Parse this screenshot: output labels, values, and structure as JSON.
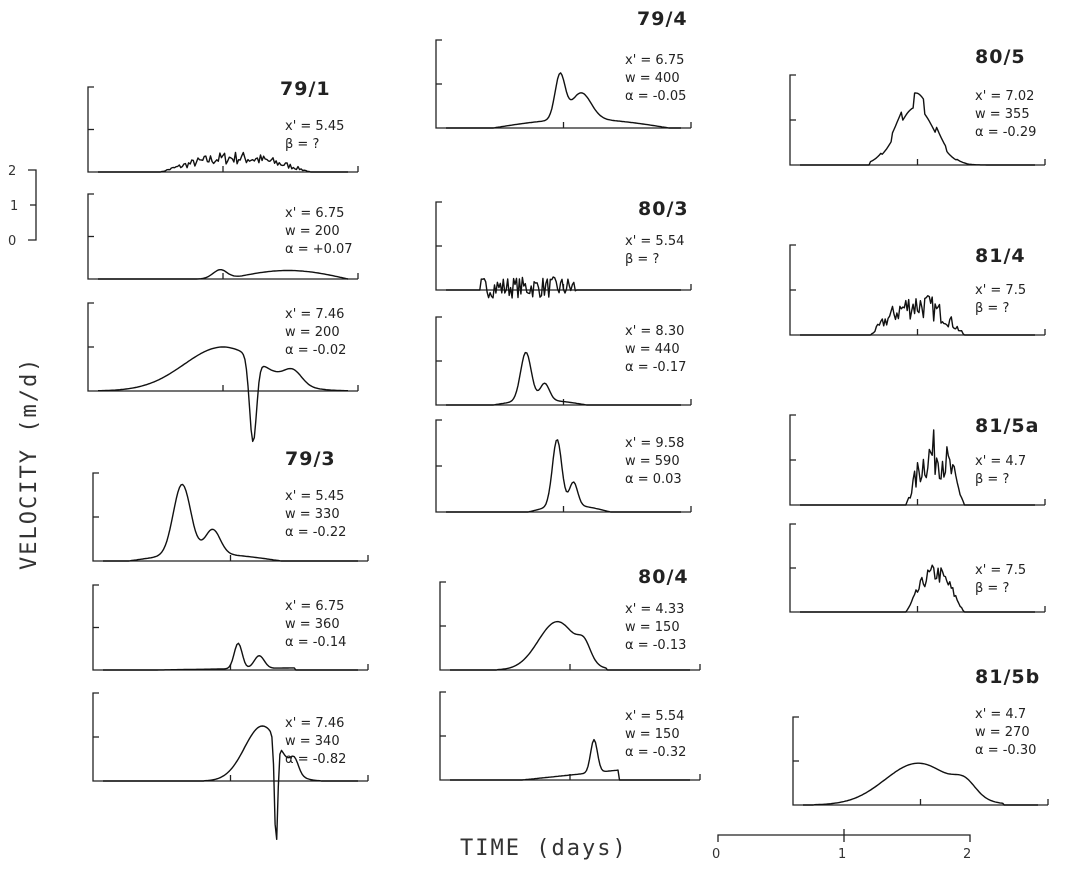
{
  "chart_data": {
    "type": "line",
    "y_axis_title": "VELOCITY  (m/d)",
    "x_axis_title": "TIME (days)",
    "y_scale_ticks": [
      "2",
      "1",
      "0"
    ],
    "time_scale_ticks": [
      "0",
      "1",
      "2"
    ],
    "panels": [
      {
        "group": "79/1",
        "x_prime": "x' = 5.45",
        "line2": "β = ?",
        "line3": "",
        "shape": "noisy",
        "peak": 0.35,
        "start": 0.25,
        "end": 0.85
      },
      {
        "group": "",
        "x_prime": "x' = 6.75",
        "line2": "w = 200",
        "line3": "α = +0.07",
        "shape": "double",
        "peak": 0.22,
        "start": 0.4,
        "end": 1.0
      },
      {
        "group": "",
        "x_prime": "x' = 7.46",
        "line2": "w = 200",
        "line3": "α = -0.02",
        "shape": "dip",
        "peak": 1.0,
        "start": 0.0,
        "end": 1.0
      },
      {
        "group": "79/3",
        "x_prime": "x' = 5.45",
        "line2": "w = 330",
        "line3": "α = -0.22",
        "shape": "spike",
        "peak": 1.6,
        "start": 0.1,
        "end": 0.7
      },
      {
        "group": "",
        "x_prime": "x' = 6.75",
        "line2": "w = 360",
        "line3": "α = -0.14",
        "shape": "small-double",
        "peak": 0.6,
        "start": 0.2,
        "end": 0.75
      },
      {
        "group": "",
        "x_prime": "x' = 7.46",
        "line2": "w = 340",
        "line3": "α = -0.82",
        "shape": "dip",
        "peak": 1.25,
        "start": 0.4,
        "end": 0.85
      },
      {
        "group": "79/4",
        "x_prime": "x' = 6.75",
        "line2": "w = 400",
        "line3": "α = -0.05",
        "shape": "double-peak",
        "peak": 1.0,
        "start": 0.2,
        "end": 0.95
      },
      {
        "group": "80/3",
        "x_prime": "x' = 5.54",
        "line2": "β = ?",
        "line3": "",
        "shape": "noisy-flat",
        "peak": 0.3,
        "start": 0.15,
        "end": 0.55
      },
      {
        "group": "",
        "x_prime": "x' = 8.30",
        "line2": "w = 440",
        "line3": "α = -0.17",
        "shape": "spike",
        "peak": 1.1,
        "start": 0.2,
        "end": 0.6
      },
      {
        "group": "",
        "x_prime": "x' = 9.58",
        "line2": "w = 590",
        "line3": "α = 0.03",
        "shape": "spike",
        "peak": 1.45,
        "start": 0.35,
        "end": 0.7
      },
      {
        "group": "80/4",
        "x_prime": "x' = 4.33",
        "line2": "w = 150",
        "line3": "α = -0.13",
        "shape": "hump",
        "peak": 1.1,
        "start": 0.2,
        "end": 0.65
      },
      {
        "group": "",
        "x_prime": "x' = 5.54",
        "line2": "w = 150",
        "line3": "α = -0.32",
        "shape": "late-spike",
        "peak": 0.75,
        "start": 0.3,
        "end": 0.7
      },
      {
        "group": "80/5",
        "x_prime": "x' = 7.02",
        "line2": "w = 355",
        "line3": "α = -0.29",
        "shape": "histogram",
        "peak": 1.6,
        "start": 0.3,
        "end": 0.85
      },
      {
        "group": "81/4",
        "x_prime": "x' = 7.5",
        "line2": "β = ?",
        "line3": "",
        "shape": "noisy",
        "peak": 0.7,
        "start": 0.3,
        "end": 0.7
      },
      {
        "group": "81/5a",
        "x_prime": "x' = 4.7",
        "line2": "β = ?",
        "line3": "",
        "shape": "noisy",
        "peak": 1.2,
        "start": 0.45,
        "end": 0.7
      },
      {
        "group": "",
        "x_prime": "x' = 7.5",
        "line2": "β = ?",
        "line3": "",
        "shape": "noisy-hump",
        "peak": 1.1,
        "start": 0.45,
        "end": 0.7
      },
      {
        "group": "81/5b",
        "x_prime": "x' = 4.7",
        "line2": "w = 270",
        "line3": "α = -0.30",
        "shape": "hump",
        "peak": 0.95,
        "start": 0.05,
        "end": 0.85
      }
    ]
  }
}
